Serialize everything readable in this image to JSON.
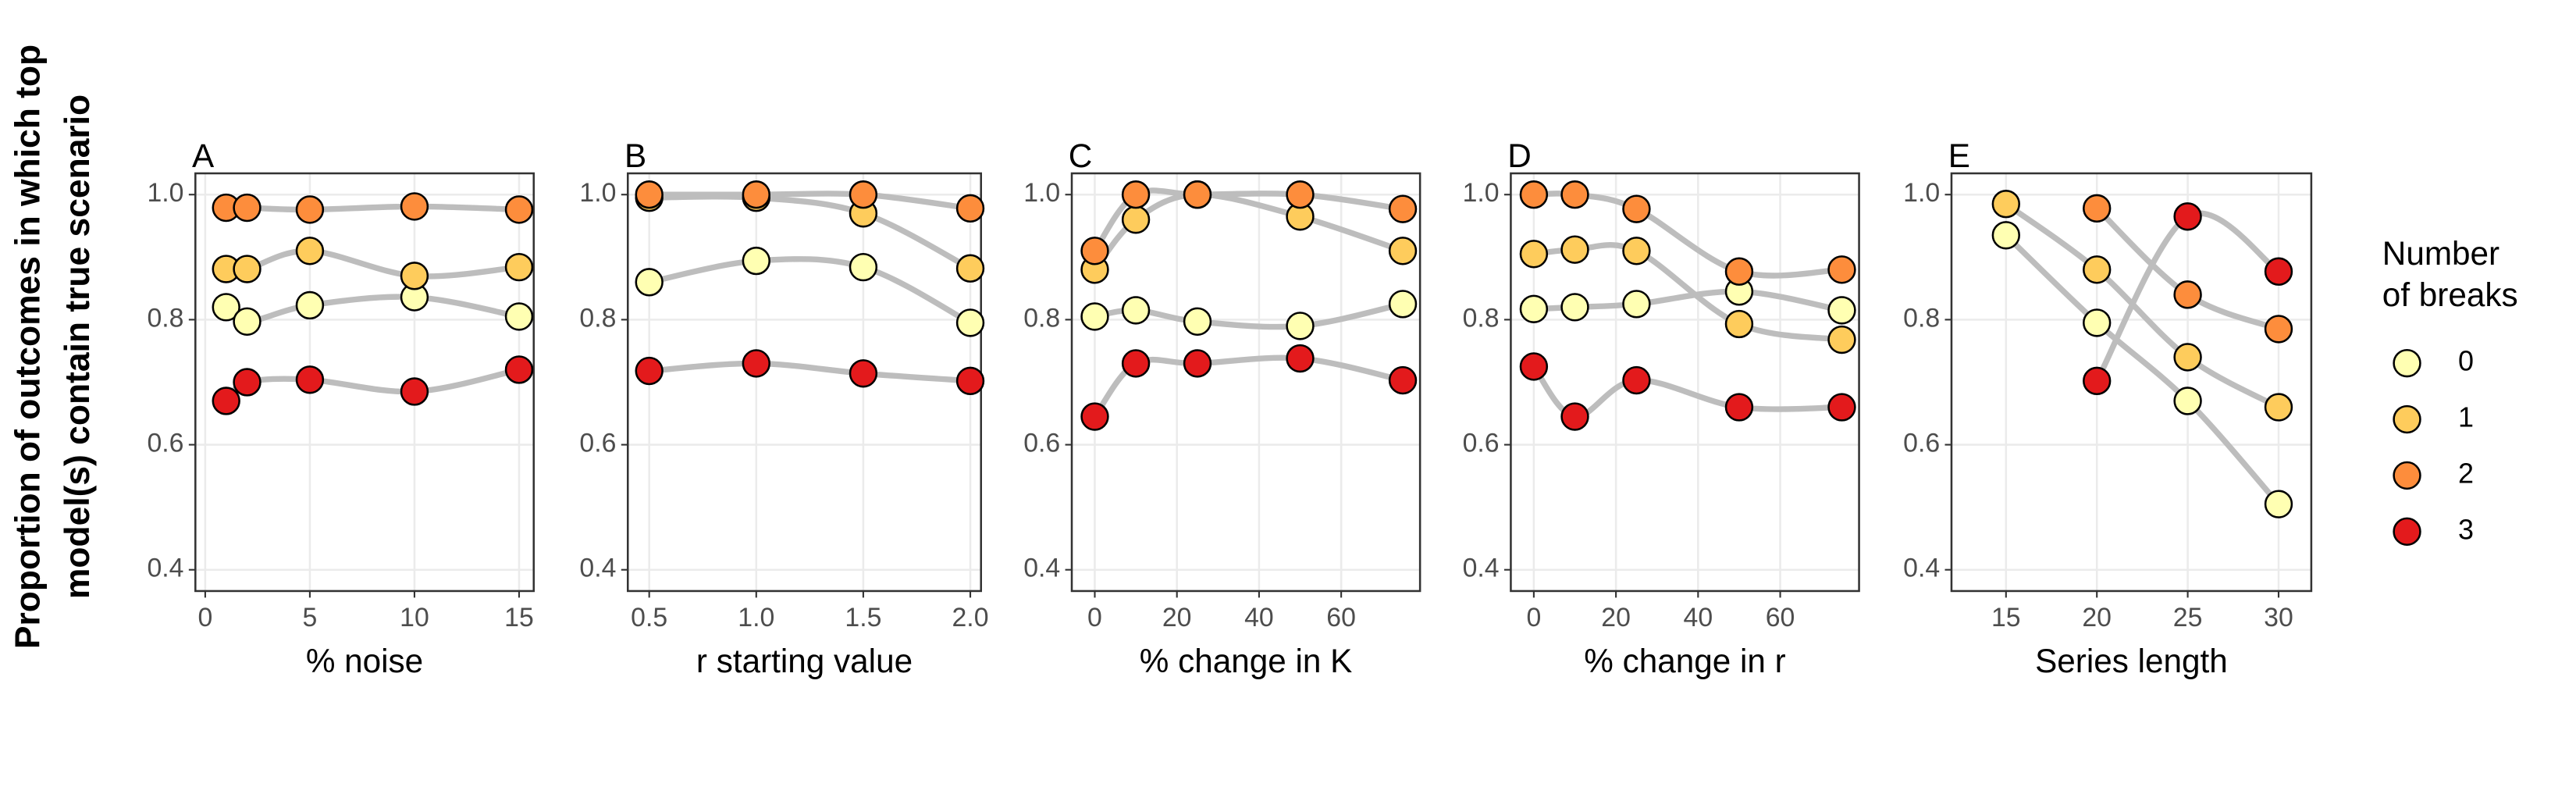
{
  "ylabel": [
    "Proportion of outcomes in which top",
    "model(s) contain true scenario"
  ],
  "legend": {
    "title": [
      "Number",
      "of breaks"
    ],
    "entries": [
      {
        "name": "0",
        "color": "#FFFFB2"
      },
      {
        "name": "1",
        "color": "#FECC5C"
      },
      {
        "name": "2",
        "color": "#FD8D3C"
      },
      {
        "name": "3",
        "color": "#E31A1C"
      }
    ]
  },
  "chart_data": [
    {
      "type": "scatter",
      "title": "A",
      "xlabel": "% noise",
      "x": [
        1,
        2,
        5,
        10,
        15
      ],
      "series": [
        {
          "values": [
            0.82,
            0.797,
            0.823,
            0.836,
            0.805
          ]
        },
        {
          "values": [
            0.881,
            0.881,
            0.91,
            0.87,
            0.884
          ]
        },
        {
          "values": [
            0.979,
            0.979,
            0.976,
            0.981,
            0.976
          ]
        },
        {
          "values": [
            0.67,
            0.7,
            0.704,
            0.685,
            0.72
          ]
        }
      ],
      "xlim": [
        -0.47,
        15.7
      ],
      "xticks": [
        0,
        5,
        10,
        15
      ],
      "ylim": [
        0.366,
        1.034
      ],
      "yticks": [
        0.4,
        0.6,
        0.8,
        {
          "value": 1,
          "label": "1.0"
        }
      ],
      "grid": true
    },
    {
      "type": "scatter",
      "title": "B",
      "xlabel": "r starting value",
      "x": [
        0.5,
        1,
        1.5,
        2
      ],
      "series": [
        {
          "values": [
            0.86,
            0.894,
            0.884,
            0.795
          ]
        },
        {
          "values": [
            0.995,
            0.995,
            0.97,
            0.882
          ]
        },
        {
          "values": [
            1,
            1,
            1,
            0.978
          ]
        },
        {
          "values": [
            0.718,
            0.73,
            0.714,
            0.702
          ]
        }
      ],
      "xlim": [
        0.4,
        2.05
      ],
      "xticks": [
        0.5,
        {
          "value": 1,
          "label": "1.0"
        },
        1.5,
        {
          "value": 2,
          "label": "2.0"
        }
      ],
      "ylim": [
        0.366,
        1.034
      ],
      "yticks": [
        0.4,
        0.6,
        0.8,
        {
          "value": 1,
          "label": "1.0"
        }
      ],
      "grid": true
    },
    {
      "type": "scatter",
      "title": "C",
      "xlabel": "% change in K",
      "x": [
        0,
        10,
        25,
        50,
        75
      ],
      "series": [
        {
          "values": [
            0.805,
            0.815,
            0.797,
            0.79,
            0.825
          ]
        },
        {
          "values": [
            0.88,
            0.96,
            1,
            0.965,
            0.91
          ]
        },
        {
          "values": [
            0.91,
            1,
            1,
            1,
            0.977
          ]
        },
        {
          "values": [
            0.645,
            0.73,
            0.73,
            0.738,
            0.703
          ]
        }
      ],
      "xlim": [
        -5.6,
        79.2
      ],
      "xticks": [
        0,
        20,
        40,
        60
      ],
      "ylim": [
        0.366,
        1.034
      ],
      "yticks": [
        0.4,
        0.6,
        0.8,
        {
          "value": 1,
          "label": "1.0"
        }
      ],
      "grid": true
    },
    {
      "type": "scatter",
      "title": "D",
      "xlabel": "% change in r",
      "x": [
        0,
        10,
        25,
        50,
        75
      ],
      "series": [
        {
          "values": [
            0.817,
            0.82,
            0.825,
            0.845,
            0.815
          ]
        },
        {
          "values": [
            0.905,
            0.912,
            0.91,
            0.793,
            0.768
          ]
        },
        {
          "values": [
            1,
            1,
            0.977,
            0.877,
            0.88
          ]
        },
        {
          "values": [
            0.725,
            0.645,
            0.703,
            0.66,
            0.66
          ]
        }
      ],
      "xlim": [
        -5.6,
        79.2
      ],
      "xticks": [
        0,
        20,
        40,
        60
      ],
      "ylim": [
        0.366,
        1.034
      ],
      "yticks": [
        0.4,
        0.6,
        0.8,
        {
          "value": 1,
          "label": "1.0"
        }
      ],
      "grid": true
    },
    {
      "type": "scatter",
      "title": "E",
      "xlabel": "Series length",
      "x": [
        15,
        20,
        25,
        30
      ],
      "series": [
        {
          "values": [
            0.935,
            0.795,
            0.67,
            0.505
          ]
        },
        {
          "values": [
            0.985,
            0.88,
            0.74,
            0.66
          ]
        },
        {
          "values": [
            null,
            0.978,
            0.84,
            0.785
          ]
        },
        {
          "values": [
            null,
            0.702,
            0.965,
            0.877
          ]
        }
      ],
      "xlim": [
        12,
        31.8
      ],
      "xticks": [
        15,
        20,
        25,
        30
      ],
      "ylim": [
        0.366,
        1.034
      ],
      "yticks": [
        0.4,
        0.6,
        0.8,
        {
          "value": 1,
          "label": "1.0"
        }
      ],
      "grid": true
    }
  ]
}
